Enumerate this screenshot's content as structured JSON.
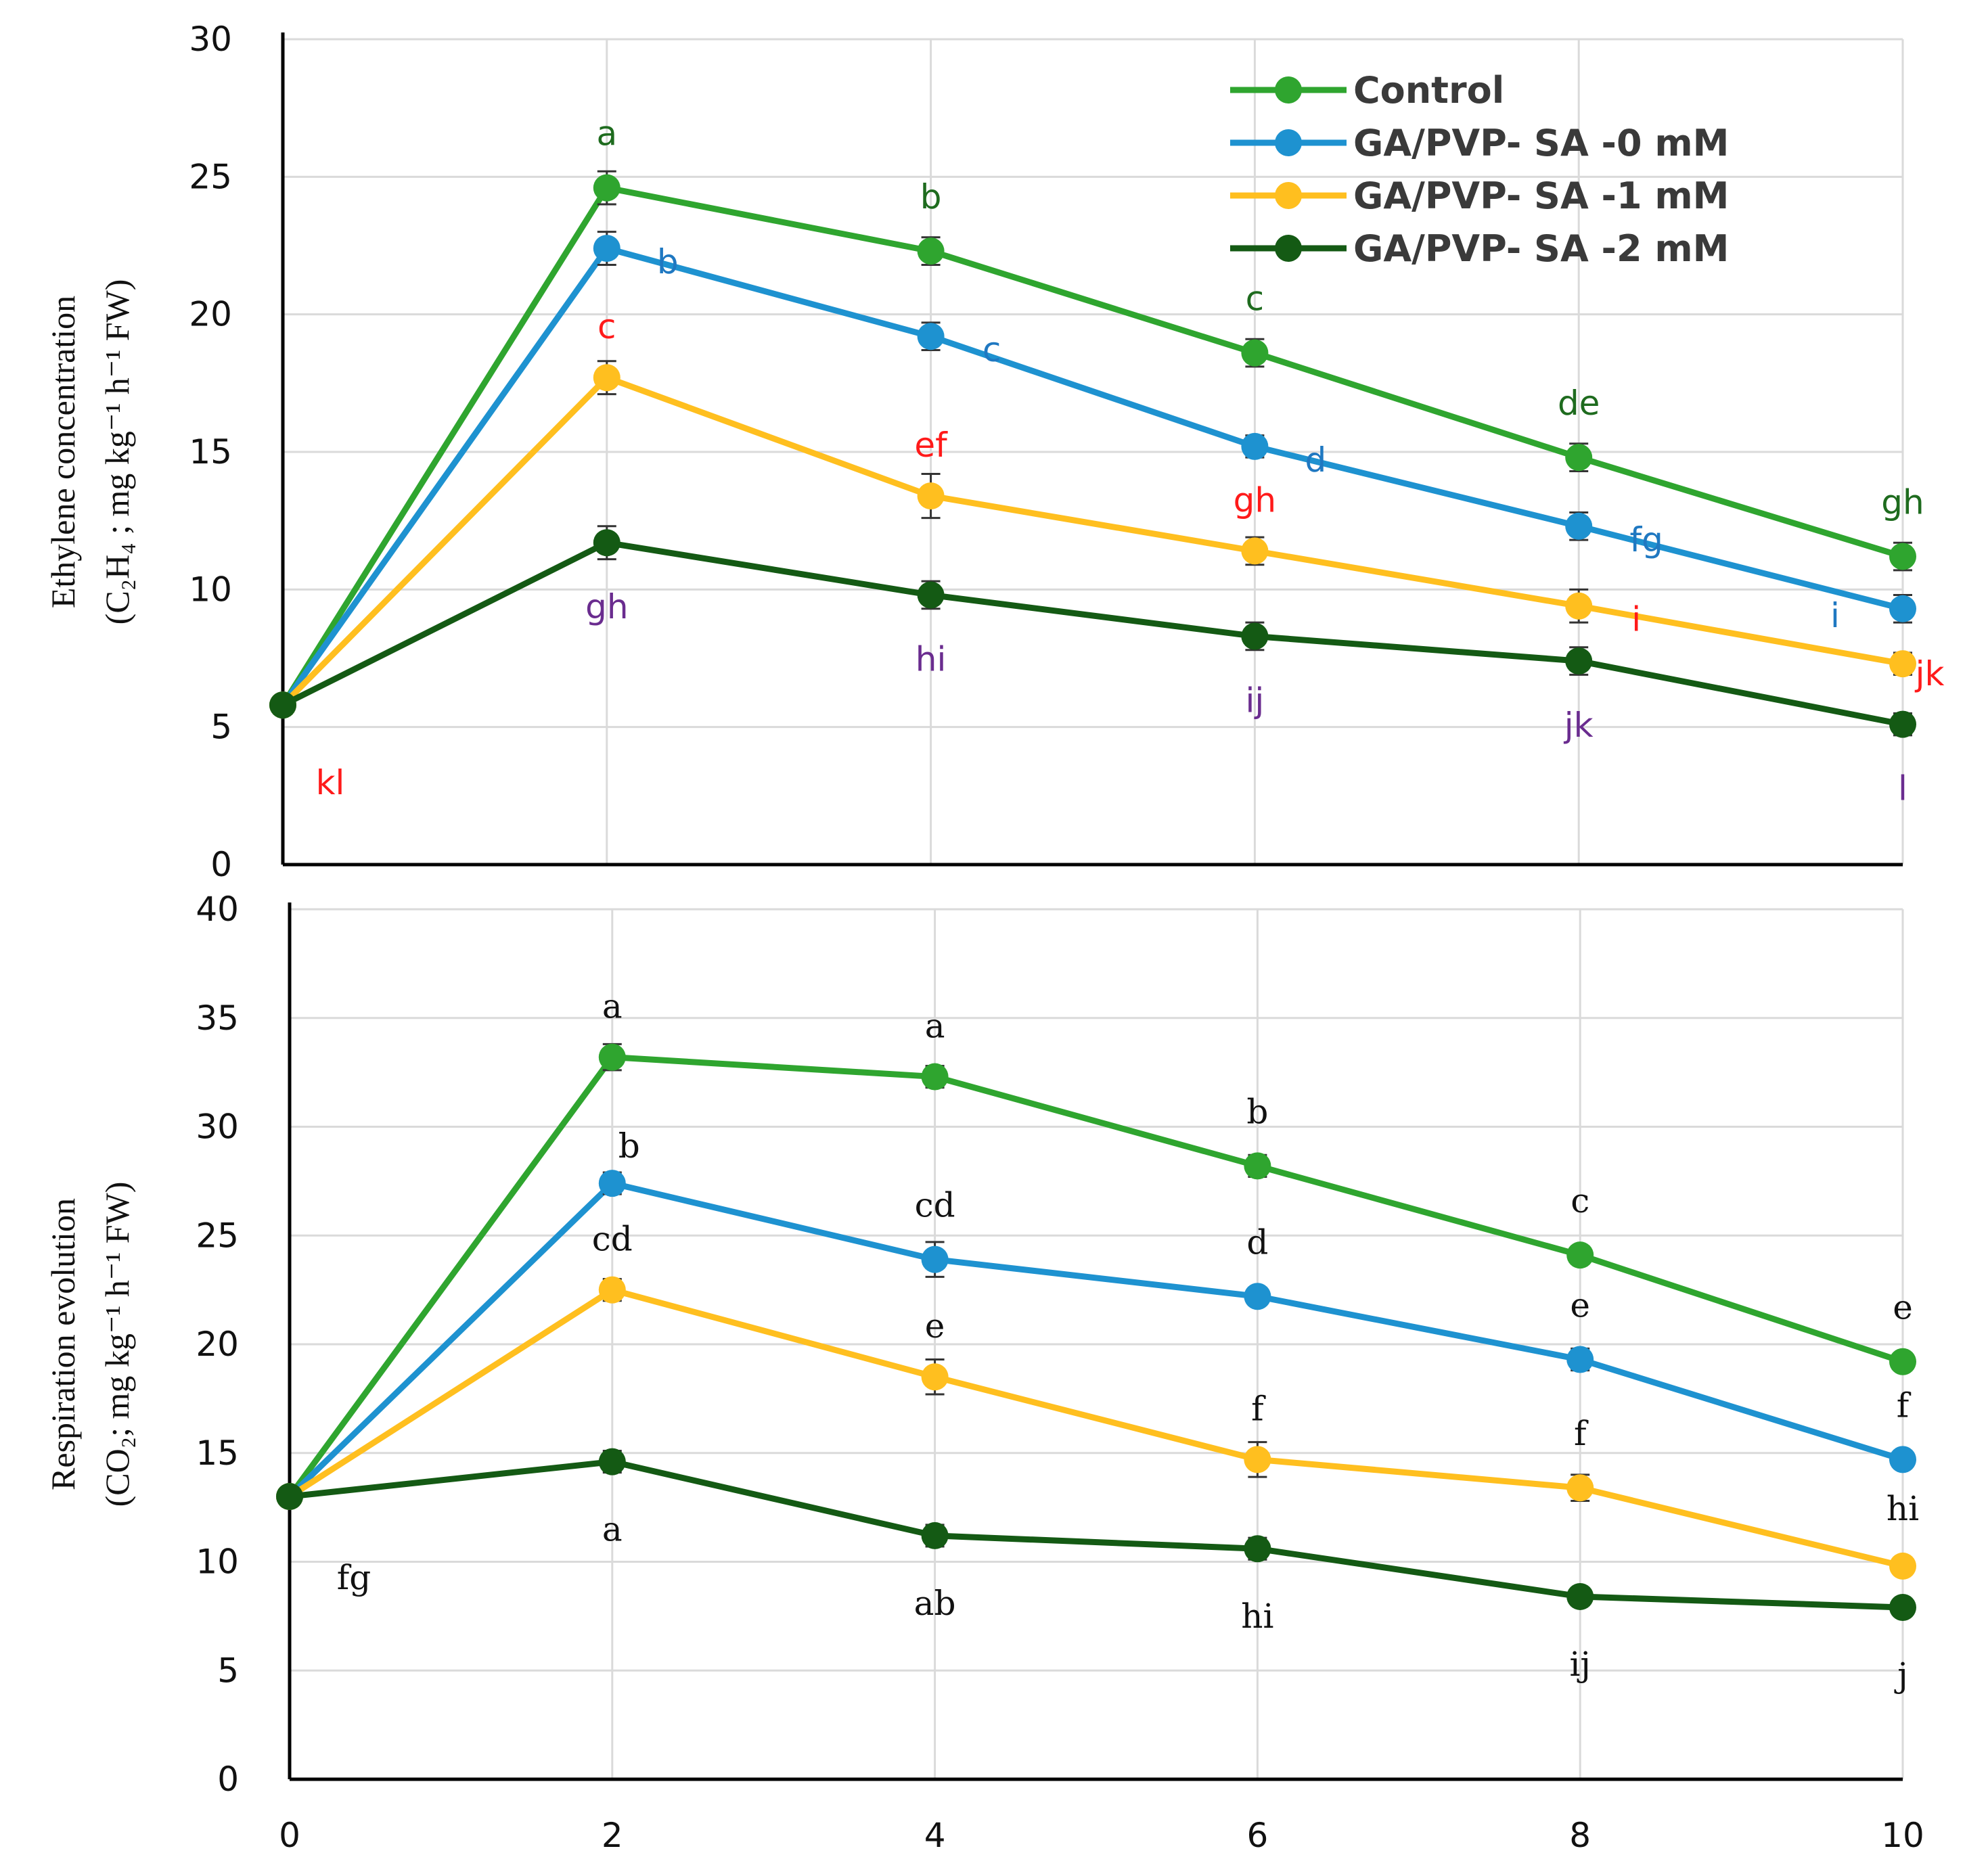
{
  "chart_data": [
    {
      "type": "line",
      "ylabel_line1": "Ethylene concentration",
      "ylabel_line2": "(C₂H₄ ; mg kg⁻¹ h⁻¹ FW)",
      "x": [
        0,
        2,
        4,
        6,
        8,
        10
      ],
      "ylim": [
        0,
        30
      ],
      "yticks": [
        0,
        5,
        10,
        15,
        20,
        25,
        30
      ],
      "grid": true,
      "legend": "top-right",
      "series": [
        {
          "name": "Control",
          "color": "#2fa52f",
          "values": [
            5.8,
            24.6,
            22.3,
            18.6,
            14.8,
            11.2
          ],
          "errors": [
            0.4,
            0.6,
            0.5,
            0.5,
            0.5,
            0.5
          ],
          "letters": [
            "",
            "a",
            "b",
            "c",
            "de",
            "gh"
          ],
          "letter_color": "#1e6b1e"
        },
        {
          "name": "GA/PVP- SA -0 mM",
          "color": "#1e92d0",
          "values": [
            5.8,
            22.4,
            19.2,
            15.2,
            12.3,
            9.3
          ],
          "errors": [
            0.4,
            0.6,
            0.5,
            0.4,
            0.5,
            0.5
          ],
          "letters": [
            "",
            "b",
            "c",
            "d",
            "fg",
            "i"
          ],
          "letter_color": "#1f78c1"
        },
        {
          "name": "GA/PVP- SA -1 mM",
          "color": "#ffbf1f",
          "values": [
            5.8,
            17.7,
            13.4,
            11.4,
            9.4,
            7.3
          ],
          "errors": [
            0.4,
            0.6,
            0.8,
            0.5,
            0.6,
            0.4
          ],
          "letters": [
            "kl",
            "c",
            "ef",
            "gh",
            "i",
            "jk"
          ],
          "letter_color": "#ff1a1a"
        },
        {
          "name": "GA/PVP- SA -2 mM",
          "color": "#145a14",
          "values": [
            5.8,
            11.7,
            9.8,
            8.3,
            7.4,
            5.1
          ],
          "errors": [
            0.4,
            0.6,
            0.5,
            0.5,
            0.5,
            0.4
          ],
          "letters": [
            "",
            "gh",
            "hi",
            "ij",
            "jk",
            "l"
          ],
          "letter_color": "#6a2c8f"
        }
      ]
    },
    {
      "type": "line",
      "ylabel_line1": "Respiration evolution",
      "ylabel_line2": "(CO₂; mg kg⁻¹ h⁻¹ FW)",
      "x": [
        0,
        2,
        4,
        6,
        8,
        10
      ],
      "xticks": [
        "0",
        "2",
        "4",
        "6",
        "8",
        "10"
      ],
      "ylim": [
        0,
        40
      ],
      "yticks": [
        0,
        5,
        10,
        15,
        20,
        25,
        30,
        35,
        40
      ],
      "grid": true,
      "series": [
        {
          "name": "Control",
          "color": "#2fa52f",
          "values": [
            13,
            33.2,
            32.3,
            28.2,
            24.1,
            19.2
          ],
          "errors": [
            0.3,
            0.6,
            0.5,
            0.5,
            0.4,
            0.3
          ],
          "letters": [
            "",
            "a",
            "a",
            "b",
            "c",
            "e"
          ],
          "letter_color": "#111111"
        },
        {
          "name": "GA/PVP- SA -0 mM",
          "color": "#1e92d0",
          "values": [
            13,
            27.4,
            23.9,
            22.2,
            19.3,
            14.7
          ],
          "errors": [
            0.3,
            0.5,
            0.8,
            0.4,
            0.5,
            0.4
          ],
          "letters": [
            "",
            "b",
            "cd",
            "d",
            "e",
            "f"
          ],
          "letter_color": "#111111"
        },
        {
          "name": "GA/PVP- SA -1 mM",
          "color": "#ffbf1f",
          "values": [
            13,
            22.5,
            18.5,
            14.7,
            13.4,
            9.8
          ],
          "errors": [
            0.3,
            0.5,
            0.8,
            0.8,
            0.6,
            0.3
          ],
          "letters": [
            "fg",
            "cd",
            "e",
            "f",
            "f",
            "hi"
          ],
          "letter_color": "#111111"
        },
        {
          "name": "GA/PVP- SA -2 mM",
          "color": "#145a14",
          "values": [
            13,
            14.6,
            11.2,
            10.6,
            8.4,
            7.9
          ],
          "errors": [
            0.3,
            0.5,
            0.5,
            0.5,
            0.3,
            0.4
          ],
          "letters": [
            "",
            "a",
            "ab",
            "hi",
            "ij",
            "j"
          ],
          "letter_color": "#111111"
        }
      ]
    }
  ]
}
